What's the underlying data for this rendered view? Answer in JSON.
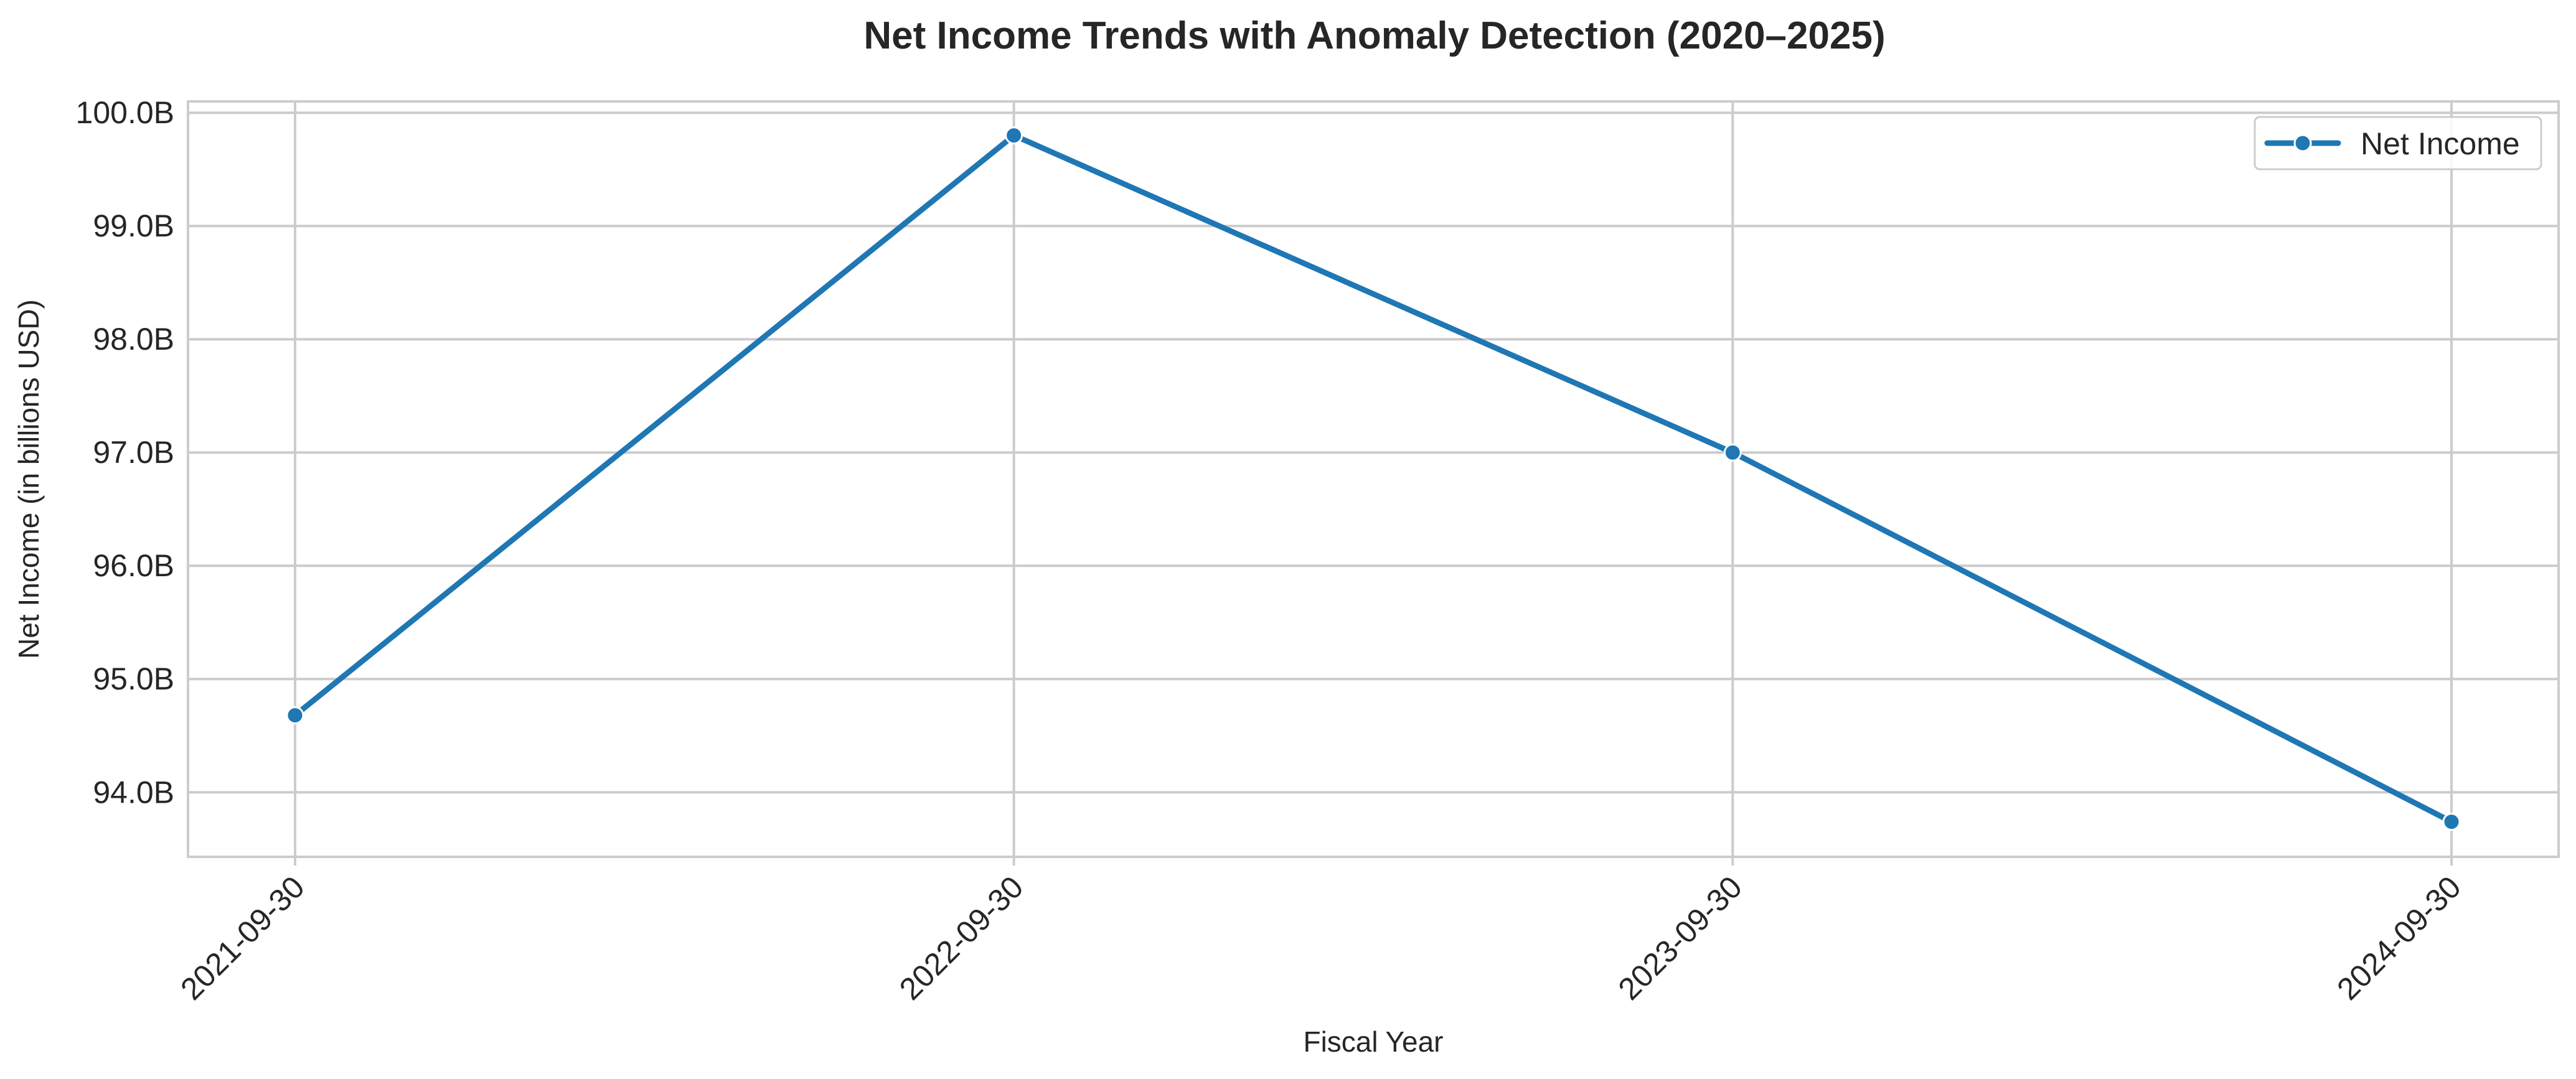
{
  "chart_data": {
    "type": "line",
    "title": "Net Income Trends with Anomaly Detection (2020–2025)",
    "xlabel": "Fiscal Year",
    "ylabel": "Net Income (in billions USD)",
    "categories": [
      "2021-09-30",
      "2022-09-30",
      "2023-09-30",
      "2024-09-30"
    ],
    "series": [
      {
        "name": "Net Income",
        "values": [
          94.68,
          99.8,
          97.0,
          93.74
        ],
        "color": "#1f77b4",
        "marker": "circle"
      }
    ],
    "y_ticks": [
      94.0,
      95.0,
      96.0,
      97.0,
      98.0,
      99.0,
      100.0
    ],
    "y_tick_labels": [
      "94.0B",
      "95.0B",
      "96.0B",
      "97.0B",
      "98.0B",
      "99.0B",
      "100.0B"
    ],
    "ylim": [
      93.43,
      100.1
    ],
    "grid": true,
    "legend_position": "top-right",
    "x_tick_rotation": "45 degrees",
    "colors": {
      "line": "#1f77b4",
      "grid": "#cccccc",
      "frame": "#cccccc",
      "text": "#262626",
      "background": "#ffffff"
    }
  }
}
